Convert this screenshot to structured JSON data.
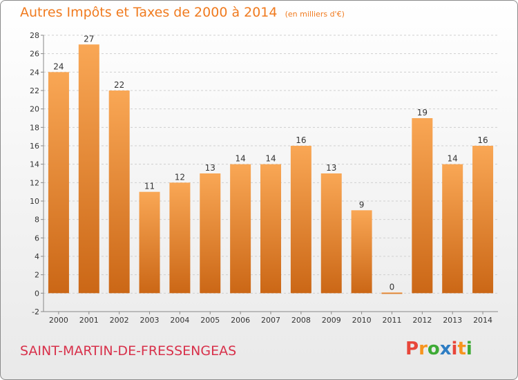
{
  "header": {
    "title": "Autres Impôts et Taxes de 2000 à 2014",
    "subtitle": "(en milliers d'€)"
  },
  "footer": {
    "commune": "SAINT-MARTIN-DE-FRESSENGEAS",
    "logo": "Proxiti"
  },
  "colors": {
    "title": "#F07A1E",
    "commune": "#D8304A",
    "bar_top": "#F9A755",
    "bar_bottom": "#CB6716",
    "logo_letters": [
      "#E8463A",
      "#F7941E",
      "#3DAA35",
      "#2E7DC3",
      "#E8463A",
      "#F7941E",
      "#3DAA35"
    ]
  },
  "chart_data": {
    "type": "bar",
    "categories": [
      "2000",
      "2001",
      "2002",
      "2003",
      "2004",
      "2005",
      "2006",
      "2007",
      "2008",
      "2009",
      "2010",
      "2011",
      "2012",
      "2013",
      "2014"
    ],
    "values": [
      24,
      27,
      22,
      11,
      12,
      13,
      14,
      14,
      16,
      13,
      9,
      0,
      19,
      14,
      16
    ],
    "data_labels": [
      "24",
      "27",
      "22",
      "11",
      "12",
      "13",
      "14",
      "14",
      "16",
      "13",
      "9",
      "0",
      "19",
      "14",
      "16"
    ],
    "title": "Autres Impôts et Taxes de 2000 à 2014",
    "xlabel": "",
    "ylabel": "",
    "ylim": [
      -2,
      28
    ],
    "yticks": [
      "-2",
      "0",
      "2",
      "4",
      "6",
      "8",
      "10",
      "12",
      "14",
      "16",
      "18",
      "20",
      "22",
      "24",
      "26",
      "28"
    ],
    "grid": true
  }
}
